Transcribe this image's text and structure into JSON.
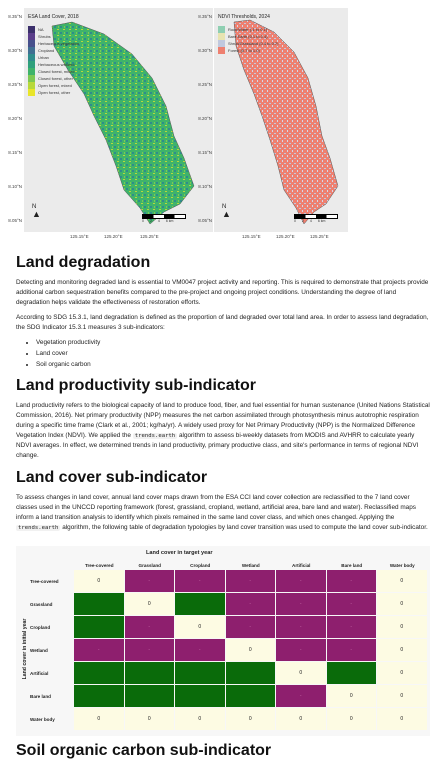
{
  "maps": [
    {
      "title": "ESA Land Cover, 2018",
      "yticks": [
        "8.35°N",
        "8.30°N",
        "8.25°N",
        "8.20°N",
        "8.15°N",
        "8.10°N",
        "8.05°N"
      ],
      "xticks": [
        "125.15°E",
        "125.20°E",
        "125.25°E"
      ],
      "legend": [
        {
          "label": "NA",
          "color": "#3b2f6b"
        },
        {
          "label": "Shrubs",
          "color": "#5a3d8a"
        },
        {
          "label": "Herbaceous vegetation",
          "color": "#46508c"
        },
        {
          "label": "Cropland",
          "color": "#3f6f92"
        },
        {
          "label": "Urban",
          "color": "#2f8c8c"
        },
        {
          "label": "Herbaceous wetland",
          "color": "#2fa07c"
        },
        {
          "label": "Closed forest, mixed",
          "color": "#3fb36a"
        },
        {
          "label": "Closed forest, other",
          "color": "#7dc953"
        },
        {
          "label": "Open forest, mixed",
          "color": "#b8d93b"
        },
        {
          "label": "Open forest, other",
          "color": "#e9e52a"
        }
      ],
      "scale_labels": [
        "0",
        "2",
        "4",
        "6 km"
      ],
      "north": "N"
    },
    {
      "title": "NDVI Thresholds, 2024",
      "yticks": [
        "8.35°N",
        "8.30°N",
        "8.25°N",
        "8.20°N",
        "8.15°N",
        "8.10°N",
        "8.05°N"
      ],
      "xticks": [
        "125.15°E",
        "125.20°E",
        "125.25°E"
      ],
      "legend": [
        {
          "label": "Rock/Water (-1 to 0.1)",
          "color": "#8fcfb2"
        },
        {
          "label": "Bare Earth (0.1 to 0.4)",
          "color": "#e8e4b0"
        },
        {
          "label": "Shrub/Grassland (0.4 to 0.7)",
          "color": "#c0c8de"
        },
        {
          "label": "Forest (0.7 to 1.0)",
          "color": "#ee8070"
        }
      ],
      "scale_labels": [
        "0",
        "2",
        "4",
        "6 km"
      ],
      "north": "N"
    }
  ],
  "sections": {
    "land_degradation": {
      "heading": "Land degradation",
      "p1": "Detecting and monitoring degraded land is essential to VM0047 project activity and reporting. This is required to demonstrate that projects provide additional carbon sequestration benefits compared to the pre-project and ongoing project conditions. Understanding the degree of land degradation helps validate the effectiveness of restoration efforts.",
      "p2": "According to SDG 15.3.1, land degradation is defined as the proportion of land degraded over total land area. In order to assess land degradation, the SDG Indicator 15.3.1 measures 3 sub-indicators:",
      "bullets": [
        "Vegetation productivity",
        "Land cover",
        "Soil organic carbon"
      ]
    },
    "land_productivity": {
      "heading": "Land productivity sub-indicator",
      "p1_a": "Land productivity refers to the biological capacity of land to produce food, fiber, and fuel essential for human sustenance (United Nations Statistical Commission, 2016). Net primary productivity (NPP) measures the net carbon assimilated through photosynthesis minus autotrophic respiration during a specific time frame (Clark et al., 2001; kg/ha/yr). A widely used proxy for Net Primary Productivity (NPP) is the Normalized Difference Vegetation Index (NDVI). We applied the",
      "code": "trends.earth",
      "p1_b": "algorithm to assess bi-weekly datasets from MODIS and AVHRR to calculate yearly NDVI averages. In effect, we determined trends in land productivity, primary productive class, and site's performance in terms of regional NDVI change."
    },
    "land_cover": {
      "heading": "Land cover sub-indicator",
      "p1_a": "To assess changes in land cover, annual land cover maps drawn from the ESA CCI land cover collection are reclassified to the 7 land cover classes used in the UNCCD reporting framework (forest, grassland, cropland, wetland, artificial area, bare land and water). Reclassified maps inform a land transition analysis to identify which pixels remained in the same land cover class, and which ones changed. Applying the",
      "code": "trends.earth",
      "p1_b": "algorithm, the following table of degradation typologies by land cover transition was used to compute the land cover sub-indicator."
    },
    "soil_organic_carbon": {
      "heading": "Soil organic carbon sub-indicator"
    }
  },
  "matrix": {
    "title": "Land cover in target year",
    "row_axis_label": "Land cover in initial year",
    "columns": [
      "Tree-covered",
      "Grassland",
      "Cropland",
      "Wetland",
      "Artificial",
      "Bare land",
      "Water body"
    ],
    "rows": [
      "Tree-covered",
      "Grassland",
      "Cropland",
      "Wetland",
      "Artificial",
      "Bare land",
      "Water body"
    ],
    "cells": [
      [
        "0",
        "-",
        "-",
        "-",
        "-",
        "-",
        "0"
      ],
      [
        "+",
        "0",
        "+",
        "-",
        "-",
        "-",
        "0"
      ],
      [
        "+",
        "-",
        "0",
        "-",
        "-",
        "-",
        "0"
      ],
      [
        "-",
        "-",
        "-",
        "0",
        "-",
        "-",
        "0"
      ],
      [
        "+",
        "+",
        "+",
        "+",
        "0",
        "+",
        "0"
      ],
      [
        "+",
        "+",
        "+",
        "+",
        "-",
        "0",
        "0"
      ],
      [
        "0",
        "0",
        "0",
        "0",
        "0",
        "0",
        "0"
      ]
    ],
    "colors": {
      "improvement": "#0a6b0a",
      "degradation": "#8e1f6e",
      "stable": "#fdfbe3"
    }
  }
}
